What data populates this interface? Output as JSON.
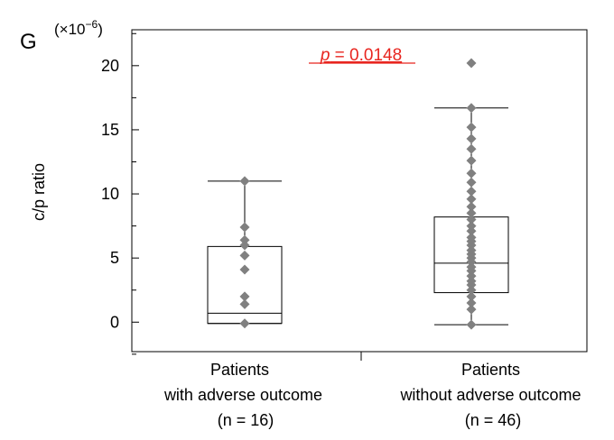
{
  "panel_label": "G",
  "chart_data": {
    "type": "box",
    "scale_note": "(×10",
    "scale_exp": "−6",
    "scale_close": ")",
    "ylabel": "c/p ratio",
    "ylim": [
      -2.3,
      22.8
    ],
    "yticks": [
      0,
      5,
      10,
      15,
      20
    ],
    "yticks_minor": [
      -2.5,
      2.5,
      7.5,
      12.5,
      17.5,
      22.5
    ],
    "annotation": {
      "p_symbol": "p",
      "p_text": " = 0.0148",
      "color": "#e8251f"
    },
    "point_color": "#808080",
    "groups": [
      {
        "label_lines": [
          "Patients",
          "with adverse outcome",
          "(n = 16)"
        ],
        "min": -0.1,
        "q1": -0.1,
        "median": 0.7,
        "q3": 5.9,
        "max": 11.0,
        "points": [
          -0.1,
          1.4,
          2.0,
          4.1,
          5.2,
          6.0,
          6.4,
          7.4,
          11.0
        ]
      },
      {
        "label_lines": [
          "Patients",
          "without adverse outcome",
          "(n = 46)"
        ],
        "min": -0.2,
        "q1": 2.3,
        "median": 4.6,
        "q3": 8.2,
        "max": 16.7,
        "points": [
          -0.2,
          1.0,
          1.5,
          2.0,
          2.5,
          2.9,
          3.2,
          3.6,
          4.0,
          4.3,
          4.7,
          5.0,
          5.3,
          5.6,
          6.0,
          6.3,
          6.6,
          7.1,
          7.5,
          8.0,
          8.5,
          9.0,
          9.6,
          10.2,
          10.9,
          11.6,
          12.6,
          13.5,
          14.3,
          15.2,
          16.7,
          20.2
        ]
      }
    ]
  }
}
